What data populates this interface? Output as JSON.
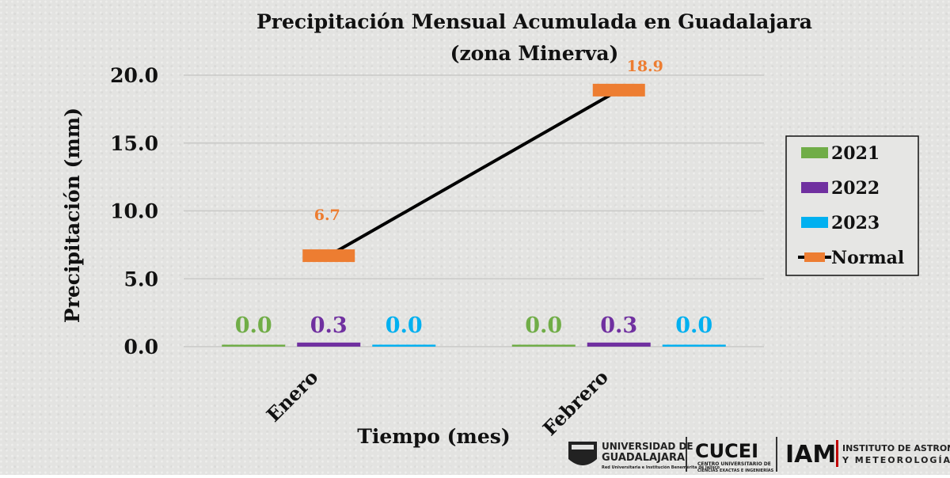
{
  "chart_data": {
    "type": "bar",
    "title_line1": "Precipitación Mensual Acumulada en Guadalajara",
    "title_line2": "(zona Minerva)",
    "xlabel": "Tiempo (mes)",
    "ylabel": "Precipitación (mm)",
    "ylim": [
      0,
      20
    ],
    "yticks": [
      "0.0",
      "5.0",
      "10.0",
      "15.0",
      "20.0"
    ],
    "grid": true,
    "legend_position": "right",
    "categories": [
      "Enero",
      "Febrero"
    ],
    "series": [
      {
        "name": "2021",
        "type": "bar",
        "color": "#70ad47",
        "values": [
          0.0,
          0.0
        ],
        "labels": [
          "0.0",
          "0.0"
        ]
      },
      {
        "name": "2022",
        "type": "bar",
        "color": "#7030a0",
        "values": [
          0.3,
          0.3
        ],
        "labels": [
          "0.3",
          "0.3"
        ]
      },
      {
        "name": "2023",
        "type": "bar",
        "color": "#00b0f0",
        "values": [
          0.0,
          0.0
        ],
        "labels": [
          "0.0",
          "0.0"
        ]
      },
      {
        "name": "Normal",
        "type": "line",
        "color": "#ed7d31",
        "line_color": "#000000",
        "values": [
          6.7,
          18.9
        ],
        "labels": [
          "6.7",
          "18.9"
        ]
      }
    ]
  },
  "logos": {
    "udg_line1": "UNIVERSIDAD DE",
    "udg_line2": "GUADALAJARA",
    "udg_line3": "Red Universitaria e Institución Benemérita de Jalisco",
    "cucei": "CUCEI",
    "cucei_sub1": "CENTRO UNIVERSITARIO DE",
    "cucei_sub2": "CIENCIAS EXACTAS E INGENIERÍAS",
    "iam": "IAM",
    "iam_sub1": "INSTITUTO DE ASTRONOMÍA",
    "iam_sub2": "Y METEOROLOGÍA"
  }
}
